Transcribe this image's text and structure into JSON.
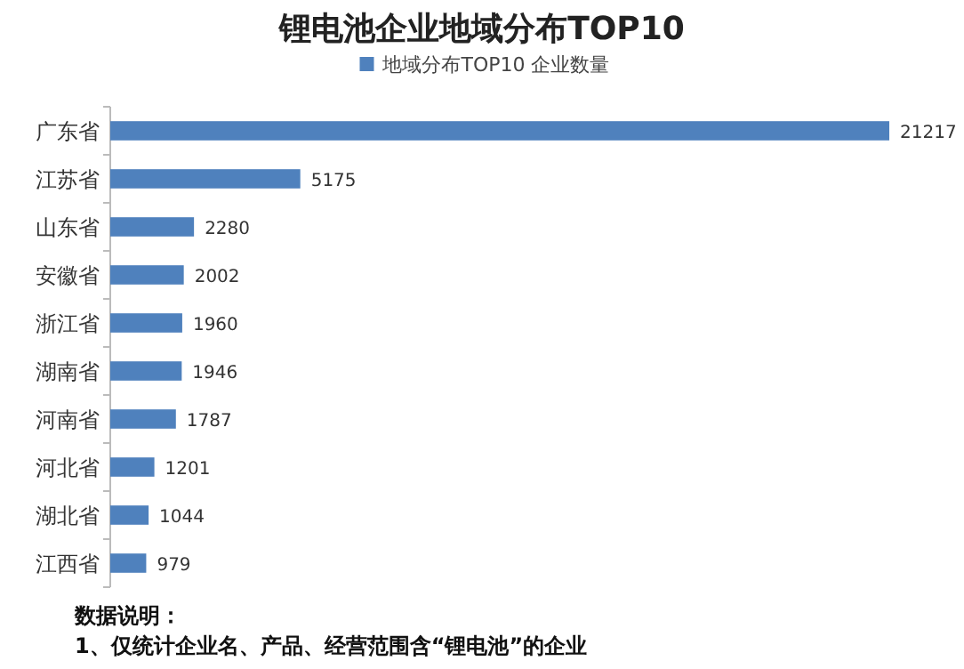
{
  "chart_data": {
    "type": "bar",
    "orientation": "horizontal",
    "title": "锂电池企业地域分布TOP10",
    "categories": [
      "广东省",
      "江苏省",
      "山东省",
      "安徽省",
      "浙江省",
      "湖南省",
      "河南省",
      "河北省",
      "湖北省",
      "江西省"
    ],
    "series": [
      {
        "name": "地域分布TOP10 企业数量",
        "color": "#4f81bd",
        "values": [
          21217,
          5175,
          2280,
          2002,
          1960,
          1946,
          1787,
          1201,
          1044,
          979
        ]
      }
    ],
    "data_labels": true,
    "legend": "top",
    "annotations": [
      "数据说明：",
      "1、仅统计企业名、产品、经营范围含“锂电池”的企业"
    ]
  }
}
